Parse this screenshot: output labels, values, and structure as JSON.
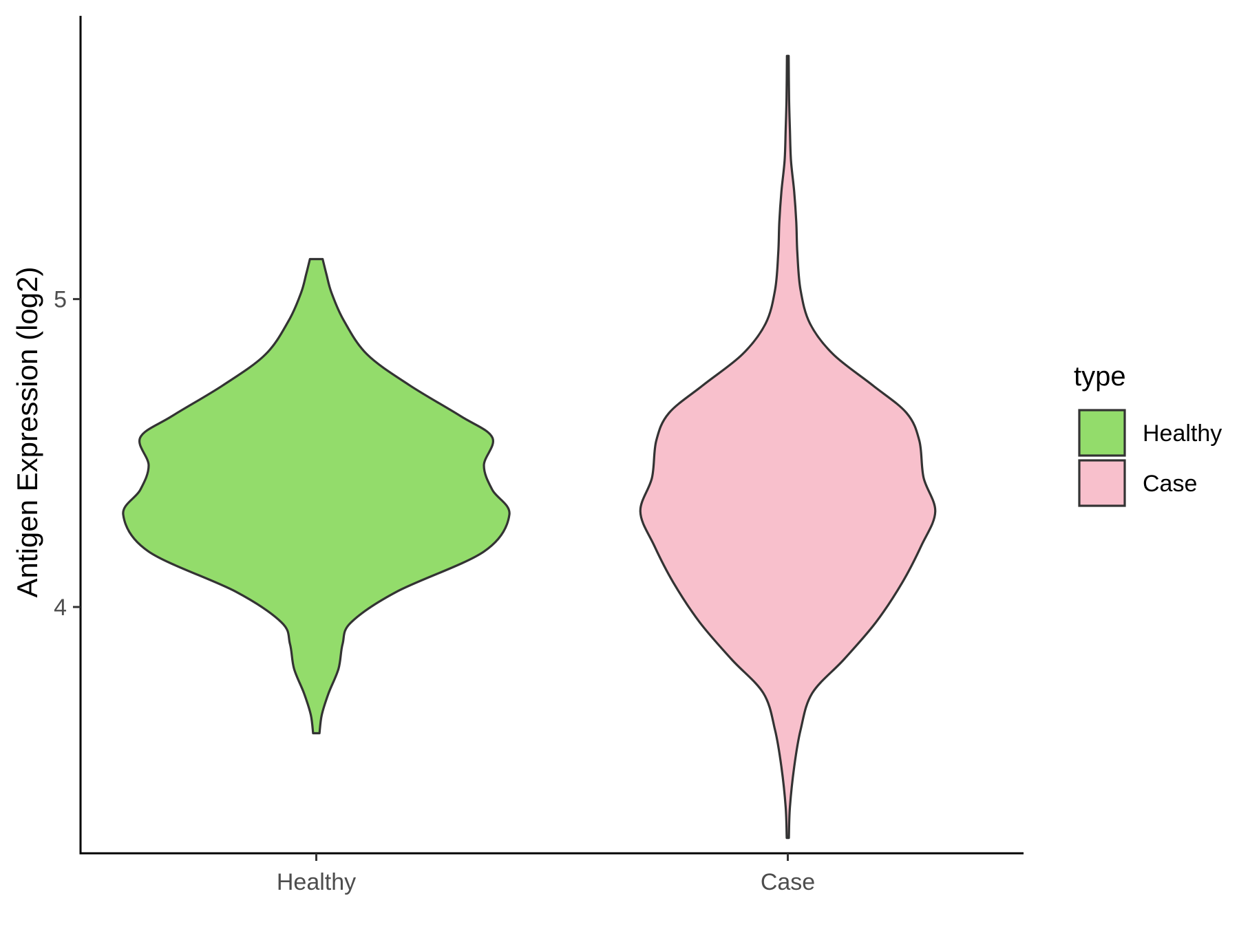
{
  "chart_data": {
    "type": "violin",
    "title": "",
    "xlabel": "",
    "ylabel": "Antigen Expression (log2)",
    "categories": [
      "Healthy",
      "Case"
    ],
    "y_ticks": [
      4,
      5
    ],
    "y_tick_labels": [
      "4",
      "5"
    ],
    "ylim": [
      3.2,
      5.92
    ],
    "grid": false,
    "legend": {
      "title": "type",
      "position": "right",
      "entries": [
        "Healthy",
        "Case"
      ]
    },
    "series": [
      {
        "name": "Healthy",
        "color": "#93DC6B",
        "density": [
          [
            3.59,
            0.015
          ],
          [
            3.65,
            0.026
          ],
          [
            3.72,
            0.058
          ],
          [
            3.8,
            0.105
          ],
          [
            3.88,
            0.124
          ],
          [
            3.95,
            0.164
          ],
          [
            4.05,
            0.38
          ],
          [
            4.18,
            0.79
          ],
          [
            4.3,
            0.91
          ],
          [
            4.38,
            0.83
          ],
          [
            4.46,
            0.79
          ],
          [
            4.55,
            0.83
          ],
          [
            4.62,
            0.68
          ],
          [
            4.72,
            0.44
          ],
          [
            4.82,
            0.24
          ],
          [
            4.93,
            0.13
          ],
          [
            5.02,
            0.072
          ],
          [
            5.08,
            0.048
          ],
          [
            5.13,
            0.03
          ]
        ]
      },
      {
        "name": "Case",
        "color": "#F8C0CC",
        "density": [
          [
            3.25,
            0.005
          ],
          [
            3.35,
            0.01
          ],
          [
            3.48,
            0.03
          ],
          [
            3.6,
            0.06
          ],
          [
            3.72,
            0.115
          ],
          [
            3.83,
            0.265
          ],
          [
            3.95,
            0.415
          ],
          [
            4.08,
            0.54
          ],
          [
            4.2,
            0.63
          ],
          [
            4.31,
            0.695
          ],
          [
            4.42,
            0.64
          ],
          [
            4.54,
            0.62
          ],
          [
            4.63,
            0.56
          ],
          [
            4.72,
            0.4
          ],
          [
            4.82,
            0.215
          ],
          [
            4.92,
            0.105
          ],
          [
            5.03,
            0.06
          ],
          [
            5.15,
            0.045
          ],
          [
            5.25,
            0.04
          ],
          [
            5.35,
            0.03
          ],
          [
            5.45,
            0.015
          ],
          [
            5.55,
            0.01
          ],
          [
            5.65,
            0.006
          ],
          [
            5.79,
            0.004
          ]
        ]
      }
    ]
  }
}
